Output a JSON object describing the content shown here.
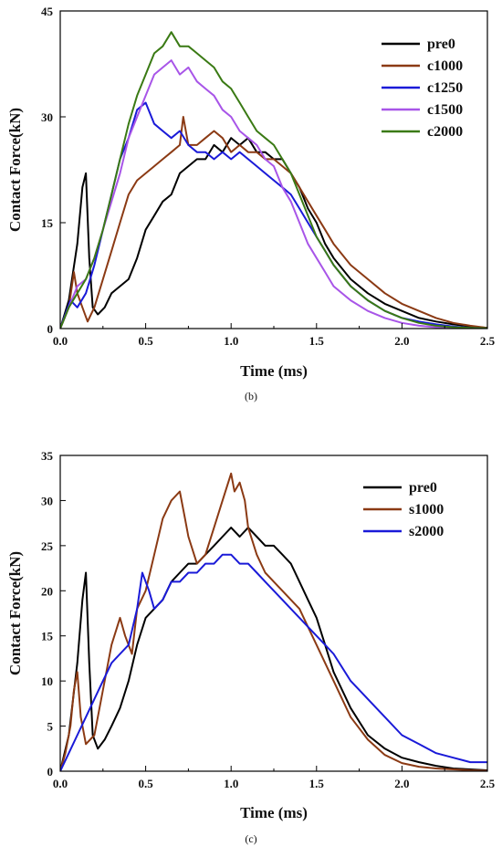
{
  "chart_data": [
    {
      "type": "line",
      "panel": "(b)",
      "xlabel": "Time (ms)",
      "ylabel": "Contact Force(kN)",
      "xlim": [
        0,
        2.5
      ],
      "ylim": [
        0,
        45
      ],
      "xticks": [
        "0.0",
        "0.5",
        "1.0",
        "1.5",
        "2.0",
        "2.5"
      ],
      "yticks": [
        "0",
        "15",
        "30",
        "45"
      ],
      "legend_position": "top-right",
      "series": [
        {
          "name": "pre0",
          "color": "#000000",
          "x": [
            0,
            0.05,
            0.1,
            0.13,
            0.15,
            0.17,
            0.19,
            0.22,
            0.26,
            0.3,
            0.35,
            0.4,
            0.45,
            0.5,
            0.55,
            0.6,
            0.65,
            0.7,
            0.75,
            0.8,
            0.85,
            0.9,
            0.95,
            1.0,
            1.05,
            1.1,
            1.15,
            1.2,
            1.25,
            1.3,
            1.35,
            1.4,
            1.45,
            1.5,
            1.55,
            1.6,
            1.7,
            1.8,
            1.9,
            2.0,
            2.1,
            2.2,
            2.3,
            2.4,
            2.5
          ],
          "y": [
            0,
            4,
            12,
            20,
            22,
            10,
            3,
            2,
            3,
            5,
            6,
            7,
            10,
            14,
            16,
            18,
            19,
            22,
            23,
            24,
            24,
            26,
            25,
            27,
            26,
            27,
            25,
            25,
            24,
            24,
            22,
            20,
            17,
            15,
            12,
            10,
            7,
            5,
            3.5,
            2.5,
            1.5,
            1,
            0.6,
            0.3,
            0.1
          ]
        },
        {
          "name": "c1000",
          "color": "#8B3A14",
          "x": [
            0,
            0.05,
            0.08,
            0.1,
            0.13,
            0.16,
            0.2,
            0.25,
            0.3,
            0.35,
            0.4,
            0.45,
            0.5,
            0.55,
            0.6,
            0.65,
            0.7,
            0.72,
            0.75,
            0.8,
            0.85,
            0.9,
            0.95,
            1.0,
            1.05,
            1.1,
            1.15,
            1.2,
            1.25,
            1.3,
            1.35,
            1.4,
            1.45,
            1.5,
            1.55,
            1.6,
            1.7,
            1.8,
            1.9,
            2.0,
            2.1,
            2.2,
            2.3,
            2.4,
            2.5
          ],
          "y": [
            0,
            3,
            8,
            5,
            3,
            1,
            3,
            7,
            11,
            15,
            19,
            21,
            22,
            23,
            24,
            25,
            26,
            30,
            26,
            26,
            27,
            28,
            27,
            25,
            26,
            25,
            25,
            24,
            24,
            23,
            22,
            20,
            18,
            16,
            14,
            12,
            9,
            7,
            5,
            3.5,
            2.5,
            1.5,
            0.8,
            0.4,
            0.1
          ]
        },
        {
          "name": "c1250",
          "color": "#1A1AD8",
          "x": [
            0,
            0.03,
            0.06,
            0.1,
            0.15,
            0.2,
            0.25,
            0.3,
            0.35,
            0.4,
            0.45,
            0.5,
            0.55,
            0.6,
            0.65,
            0.7,
            0.75,
            0.8,
            0.85,
            0.9,
            0.95,
            1.0,
            1.05,
            1.1,
            1.15,
            1.2,
            1.25,
            1.3,
            1.35,
            1.4,
            1.45,
            1.5,
            1.55,
            1.6,
            1.7,
            1.8,
            1.9,
            2.0,
            2.1,
            2.2,
            2.3,
            2.4,
            2.5
          ],
          "y": [
            0,
            2,
            4,
            3,
            5,
            9,
            14,
            19,
            24,
            27,
            31,
            32,
            29,
            28,
            27,
            28,
            26,
            25,
            25,
            24,
            25,
            24,
            25,
            24,
            23,
            22,
            21,
            20,
            19,
            17,
            15,
            13,
            11,
            9,
            6,
            4,
            2.5,
            1.5,
            1,
            0.6,
            0.3,
            0.1,
            0.05
          ]
        },
        {
          "name": "c1500",
          "color": "#A855E8",
          "x": [
            0,
            0.05,
            0.1,
            0.15,
            0.2,
            0.25,
            0.3,
            0.35,
            0.4,
            0.45,
            0.5,
            0.55,
            0.6,
            0.65,
            0.7,
            0.75,
            0.8,
            0.85,
            0.9,
            0.95,
            1.0,
            1.05,
            1.1,
            1.15,
            1.2,
            1.25,
            1.3,
            1.35,
            1.4,
            1.45,
            1.5,
            1.55,
            1.6,
            1.7,
            1.8,
            1.9,
            2.0,
            2.1,
            2.2,
            2.3,
            2.4,
            2.5
          ],
          "y": [
            0,
            3,
            6,
            7,
            10,
            14,
            18,
            22,
            27,
            30,
            33,
            36,
            37,
            38,
            36,
            37,
            35,
            34,
            33,
            31,
            30,
            28,
            27,
            26,
            24,
            23,
            20,
            18,
            15,
            12,
            10,
            8,
            6,
            4,
            2.5,
            1.5,
            0.8,
            0.4,
            0.2,
            0.1,
            0.05,
            0
          ]
        },
        {
          "name": "c2000",
          "color": "#3A7A14",
          "x": [
            0,
            0.05,
            0.1,
            0.15,
            0.2,
            0.25,
            0.3,
            0.35,
            0.4,
            0.45,
            0.5,
            0.55,
            0.6,
            0.65,
            0.7,
            0.75,
            0.8,
            0.85,
            0.9,
            0.95,
            1.0,
            1.05,
            1.1,
            1.15,
            1.2,
            1.25,
            1.3,
            1.35,
            1.4,
            1.45,
            1.5,
            1.55,
            1.6,
            1.7,
            1.8,
            1.9,
            2.0,
            2.1,
            2.2,
            2.3,
            2.4,
            2.5
          ],
          "y": [
            0,
            3,
            5,
            7,
            10,
            14,
            19,
            24,
            29,
            33,
            36,
            39,
            40,
            42,
            40,
            40,
            39,
            38,
            37,
            35,
            34,
            32,
            30,
            28,
            27,
            26,
            24,
            22,
            19,
            16,
            13,
            11,
            9,
            6,
            4,
            2.5,
            1.5,
            0.8,
            0.4,
            0.2,
            0.1,
            0.05
          ]
        }
      ]
    },
    {
      "type": "line",
      "panel": "(c)",
      "xlabel": "Time (ms)",
      "ylabel": "Contact Force(kN)",
      "xlim": [
        0,
        2.5
      ],
      "ylim": [
        0,
        35
      ],
      "xticks": [
        "0.0",
        "0.5",
        "1.0",
        "1.5",
        "2.0",
        "2.5"
      ],
      "yticks": [
        "0",
        "5",
        "10",
        "15",
        "20",
        "25",
        "30",
        "35"
      ],
      "legend_position": "top-right",
      "series": [
        {
          "name": "pre0",
          "color": "#000000",
          "x": [
            0,
            0.05,
            0.1,
            0.13,
            0.15,
            0.17,
            0.19,
            0.22,
            0.26,
            0.3,
            0.35,
            0.4,
            0.45,
            0.5,
            0.55,
            0.6,
            0.65,
            0.7,
            0.75,
            0.8,
            0.85,
            0.9,
            0.95,
            1.0,
            1.05,
            1.1,
            1.15,
            1.2,
            1.25,
            1.3,
            1.35,
            1.4,
            1.45,
            1.5,
            1.55,
            1.6,
            1.7,
            1.8,
            1.9,
            2.0,
            2.1,
            2.2,
            2.3,
            2.4,
            2.5
          ],
          "y": [
            0,
            4,
            12,
            19,
            22,
            12,
            4,
            2.5,
            3.5,
            5,
            7,
            10,
            14,
            17,
            18,
            19,
            21,
            22,
            23,
            23,
            24,
            25,
            26,
            27,
            26,
            27,
            26,
            25,
            25,
            24,
            23,
            21,
            19,
            17,
            14,
            11,
            7,
            4,
            2.5,
            1.5,
            1,
            0.6,
            0.3,
            0.2,
            0.1
          ]
        },
        {
          "name": "s1000",
          "color": "#8B3A14",
          "x": [
            0,
            0.03,
            0.06,
            0.08,
            0.1,
            0.12,
            0.15,
            0.2,
            0.25,
            0.3,
            0.35,
            0.38,
            0.42,
            0.45,
            0.5,
            0.55,
            0.6,
            0.65,
            0.7,
            0.73,
            0.75,
            0.8,
            0.85,
            0.9,
            0.95,
            1.0,
            1.02,
            1.05,
            1.08,
            1.1,
            1.15,
            1.2,
            1.25,
            1.3,
            1.35,
            1.4,
            1.45,
            1.5,
            1.55,
            1.6,
            1.7,
            1.8,
            1.9,
            2.0,
            2.1,
            2.2,
            2.3,
            2.4,
            2.5
          ],
          "y": [
            0,
            2,
            5,
            9,
            11,
            6,
            3,
            4,
            9,
            14,
            17,
            15,
            13,
            18,
            20,
            24,
            28,
            30,
            31,
            28,
            26,
            23,
            24,
            27,
            30,
            33,
            31,
            32,
            30,
            27,
            24,
            22,
            21,
            20,
            19,
            18,
            16,
            14,
            12,
            10,
            6,
            3.5,
            1.8,
            0.9,
            0.5,
            0.3,
            0.2,
            0.1,
            0.05
          ]
        },
        {
          "name": "s2000",
          "color": "#1A1AD8",
          "x": [
            0,
            0.05,
            0.1,
            0.15,
            0.2,
            0.25,
            0.3,
            0.35,
            0.4,
            0.45,
            0.48,
            0.52,
            0.55,
            0.6,
            0.65,
            0.7,
            0.75,
            0.8,
            0.85,
            0.9,
            0.95,
            1.0,
            1.05,
            1.1,
            1.15,
            1.2,
            1.25,
            1.3,
            1.35,
            1.4,
            1.45,
            1.5,
            1.55,
            1.6,
            1.7,
            1.8,
            1.9,
            2.0,
            2.1,
            2.2,
            2.3,
            2.4,
            2.5
          ],
          "y": [
            0,
            2,
            4,
            6,
            8,
            10,
            12,
            13,
            14,
            18,
            22,
            20,
            18,
            19,
            21,
            21,
            22,
            22,
            23,
            23,
            24,
            24,
            23,
            23,
            22,
            21,
            20,
            19,
            18,
            17,
            16,
            15,
            14,
            13,
            10,
            8,
            6,
            4,
            3,
            2,
            1.5,
            1,
            1
          ]
        }
      ]
    }
  ],
  "captions": [
    "(b)",
    "(c)"
  ]
}
